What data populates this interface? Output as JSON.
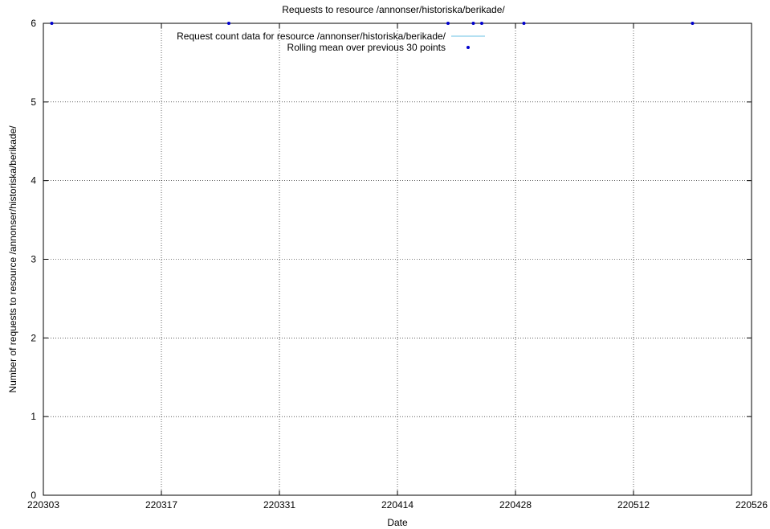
{
  "chart_data": {
    "type": "line",
    "title": "Requests to resource /annonser/historiska/berikade/",
    "xlabel": "Date",
    "ylabel": "Number of requests to resource /annonser/historiska/berikade/",
    "x_ticks": [
      "220303",
      "220317",
      "220331",
      "220414",
      "220428",
      "220512",
      "220526"
    ],
    "y_ticks": [
      "0",
      "1",
      "2",
      "3",
      "4",
      "5",
      "6"
    ],
    "xlim": [
      "2022-03-03",
      "2022-05-26"
    ],
    "ylim": [
      0,
      6
    ],
    "grid": true,
    "legend_position": "top-center",
    "series": [
      {
        "name": "Request count data for resource /annonser/historiska/berikade/",
        "style": "line",
        "color": "#87ceeb",
        "x": [],
        "values": []
      },
      {
        "name": "Rolling mean over previous 30 points",
        "style": "points",
        "color": "#0000cd",
        "x": [
          "2022-03-04",
          "2022-03-25",
          "2022-04-20",
          "2022-04-23",
          "2022-04-24",
          "2022-04-29",
          "2022-05-19"
        ],
        "values": [
          6,
          6,
          6,
          6,
          6,
          6,
          6
        ]
      }
    ]
  }
}
